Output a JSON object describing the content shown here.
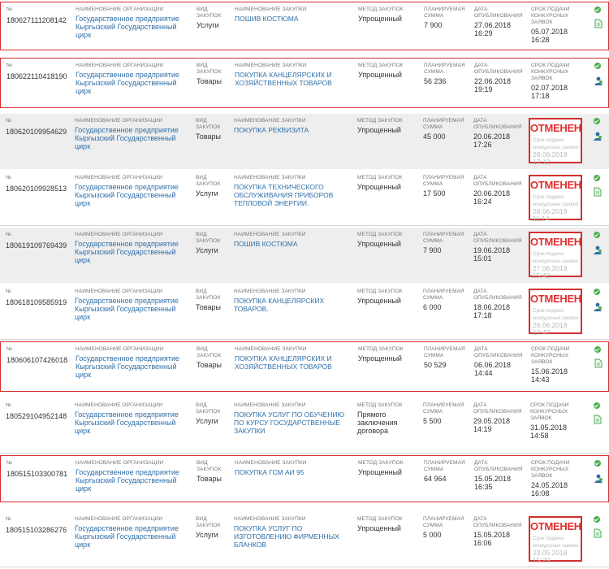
{
  "headers": {
    "number": "№",
    "org": "Наименование организации",
    "kind": "Вид закупок",
    "purchase": "Наименование закупки",
    "method": "Метод закупок",
    "sum": "Планируемая сумма",
    "date": "Дата опубликования",
    "deadline": "Срок подачи конкурсных заявок"
  },
  "cancel_label": "ОТМЕНЕН",
  "colors": {
    "link": "#2f6fa8",
    "cancel": "#e03030",
    "selected_border": "#d32f2f",
    "row_gray": "#eeeeee",
    "ok_icon": "#4caf50"
  },
  "rows": [
    {
      "number": "180627111208142",
      "org": "Государственное предприятие Кыргызский Государственный цирк",
      "kind": "Услуги",
      "purchase": "Пошив костюма",
      "method": "Упрощенный",
      "sum": "7 900",
      "date": "27.06.2018",
      "time": "16:29",
      "deadline_date": "05.07.2018",
      "deadline_time": "16:28",
      "status": "active",
      "icon2": "doc-icon"
    },
    {
      "number": "180622110418190",
      "org": "Государственное предприятие Кыргызский Государственный цирк",
      "kind": "Товары",
      "purchase": "Покупка канцелярских и хозяйственных товаров",
      "method": "Упрощенный",
      "sum": "56 236",
      "date": "22.06.2018",
      "time": "19:19",
      "deadline_date": "02.07.2018",
      "deadline_time": "17:18",
      "status": "active",
      "icon2": "user-icon"
    },
    {
      "number": "180620109954629",
      "org": "Государственное предприятие Кыргызский Государственный цирк",
      "kind": "Товары",
      "purchase": "Покупка реквизита",
      "method": "Упрощенный",
      "sum": "45 000",
      "date": "20.06.2018",
      "time": "17:26",
      "deadline_date": "28.06.2018",
      "deadline_time": "17:12",
      "status": "cancelled",
      "icon2": "user-icon"
    },
    {
      "number": "180620109928513",
      "org": "Государственное предприятие Кыргызский Государственный цирк",
      "kind": "Услуги",
      "purchase": "Покупка технического обслуживания приборов тепловой энергии.",
      "method": "Упрощенный",
      "sum": "17 500",
      "date": "20.06.2018",
      "time": "16:24",
      "deadline_date": "28.06.2018",
      "deadline_time": "11:14",
      "status": "cancelled",
      "icon2": "doc-icon"
    },
    {
      "number": "180619109769439",
      "org": "Государственное предприятие Кыргызский Государственный цирк",
      "kind": "Услуги",
      "purchase": "Пошив костюма",
      "method": "Упрощенный",
      "sum": "7 900",
      "date": "19.06.2018",
      "time": "15:01",
      "deadline_date": "27.06.2018",
      "deadline_time": "15:42",
      "status": "cancelled",
      "icon2": "user-icon"
    },
    {
      "number": "180618109585919",
      "org": "Государственное предприятие Кыргызский Государственный цирк",
      "kind": "Товары",
      "purchase": "Покупка канцелярских товаров.",
      "method": "Упрощенный",
      "sum": "6 000",
      "date": "18.06.2018",
      "time": "17:18",
      "deadline_date": "26.06.2018",
      "deadline_time": "17:47",
      "status": "cancelled",
      "icon2": "user-icon"
    },
    {
      "number": "180606107426018",
      "org": "Государственное предприятие Кыргызский Государственный цирк",
      "kind": "Товары",
      "purchase": "Покупка канцелярских и хозяйственных товаров",
      "method": "Упрощенный",
      "sum": "50 529",
      "date": "06.06.2018",
      "time": "14:44",
      "deadline_date": "15.06.2018",
      "deadline_time": "14:43",
      "status": "active",
      "icon2": "doc-icon"
    },
    {
      "number": "180529104952148",
      "org": "Государственное предприятие Кыргызский Государственный цирк",
      "kind": "Услуги",
      "purchase": "Покупка услуг по обучению по курсу государственные закупки",
      "method": "Прямого заключения договора",
      "sum": "5 500",
      "date": "29.05.2018",
      "time": "14:19",
      "deadline_date": "31.05.2018",
      "deadline_time": "14:58",
      "status": "active",
      "icon2": "doc-icon"
    },
    {
      "number": "180515103300781",
      "org": "Государственное предприятие Кыргызский Государственный цирк",
      "kind": "Товары",
      "purchase": "Покупка ГСМ АИ 95",
      "method": "Упрощенный",
      "sum": "64 964",
      "date": "15.05.2018",
      "time": "16:35",
      "deadline_date": "24.05.2018",
      "deadline_time": "16:08",
      "status": "active",
      "icon2": "user-icon"
    },
    {
      "number": "180515103286276",
      "org": "Государственное предприятие Кыргызский Государственный цирк",
      "kind": "Услуги",
      "purchase": "Покупка услуг по изготовлению фирменных бланков",
      "method": "Упрощенный",
      "sum": "5 000",
      "date": "15.05.2018",
      "time": "16:06",
      "deadline_date": "23.05.2018",
      "deadline_time": "15:29",
      "status": "cancelled",
      "icon2": "doc-icon"
    }
  ]
}
